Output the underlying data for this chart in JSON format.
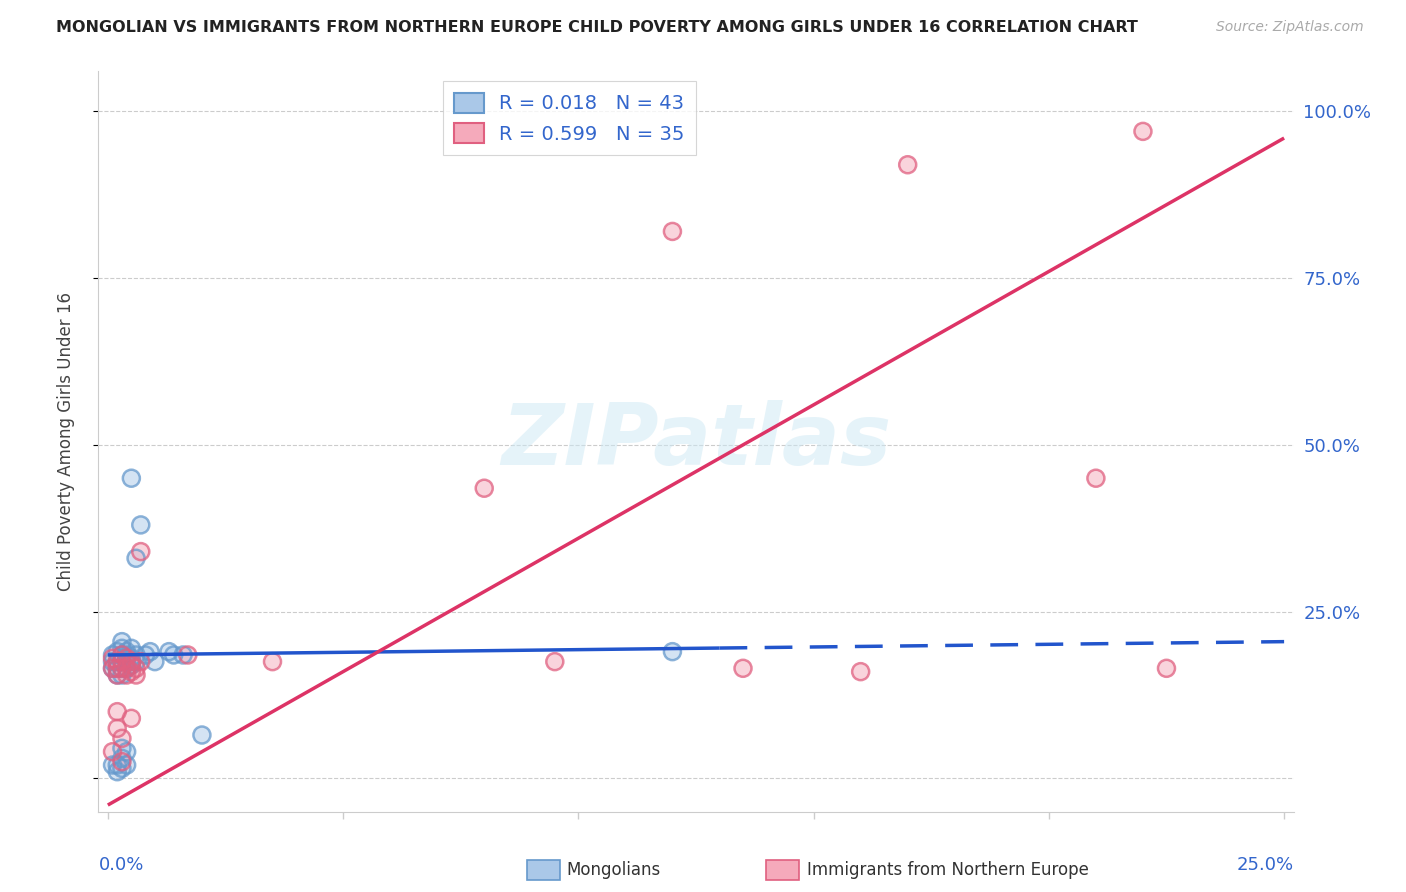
{
  "title": "MONGOLIAN VS IMMIGRANTS FROM NORTHERN EUROPE CHILD POVERTY AMONG GIRLS UNDER 16 CORRELATION CHART",
  "source": "Source: ZipAtlas.com",
  "ylabel": "Child Poverty Among Girls Under 16",
  "watermark": "ZIPatlas",
  "legend_mongolians": "Mongolians",
  "legend_immigrants": "Immigrants from Northern Europe",
  "R_mongolians": 0.018,
  "N_mongolians": 43,
  "R_immigrants": 0.599,
  "N_immigrants": 35,
  "xlim": [
    -0.002,
    0.252
  ],
  "ylim": [
    -0.05,
    1.06
  ],
  "color_mon_face": "#aac8e8",
  "color_mon_edge": "#6699cc",
  "color_imm_face": "#f5aabb",
  "color_imm_edge": "#e06080",
  "color_line_mon": "#2255cc",
  "color_line_imm": "#dd3366",
  "color_grid": "#cccccc",
  "color_axis_label": "#3366cc",
  "color_title": "#222222",
  "color_source": "#aaaaaa",
  "mon_x": [
    0.001,
    0.001,
    0.001,
    0.001,
    0.002,
    0.002,
    0.002,
    0.002,
    0.002,
    0.002,
    0.003,
    0.003,
    0.003,
    0.003,
    0.003,
    0.003,
    0.003,
    0.003,
    0.003,
    0.004,
    0.004,
    0.004,
    0.004,
    0.004,
    0.004,
    0.004,
    0.005,
    0.005,
    0.005,
    0.005,
    0.005,
    0.006,
    0.006,
    0.006,
    0.007,
    0.008,
    0.009,
    0.01,
    0.013,
    0.014,
    0.016,
    0.02,
    0.12
  ],
  "mon_y": [
    0.175,
    0.165,
    0.185,
    0.02,
    0.155,
    0.19,
    0.175,
    0.165,
    0.02,
    0.01,
    0.205,
    0.195,
    0.175,
    0.165,
    0.185,
    0.155,
    0.045,
    0.03,
    0.015,
    0.19,
    0.18,
    0.165,
    0.175,
    0.185,
    0.04,
    0.02,
    0.195,
    0.18,
    0.17,
    0.45,
    0.175,
    0.33,
    0.185,
    0.175,
    0.38,
    0.185,
    0.19,
    0.175,
    0.19,
    0.185,
    0.185,
    0.065,
    0.19
  ],
  "imm_x": [
    0.001,
    0.001,
    0.001,
    0.002,
    0.002,
    0.002,
    0.002,
    0.002,
    0.003,
    0.003,
    0.003,
    0.003,
    0.003,
    0.004,
    0.004,
    0.004,
    0.005,
    0.005,
    0.005,
    0.005,
    0.006,
    0.006,
    0.007,
    0.007,
    0.017,
    0.035,
    0.08,
    0.095,
    0.12,
    0.135,
    0.16,
    0.17,
    0.21,
    0.22,
    0.225
  ],
  "imm_y": [
    0.18,
    0.165,
    0.04,
    0.175,
    0.165,
    0.155,
    0.1,
    0.075,
    0.185,
    0.175,
    0.165,
    0.06,
    0.025,
    0.18,
    0.165,
    0.155,
    0.175,
    0.17,
    0.16,
    0.09,
    0.165,
    0.155,
    0.175,
    0.34,
    0.185,
    0.175,
    0.435,
    0.175,
    0.82,
    0.165,
    0.16,
    0.92,
    0.45,
    0.97,
    0.165
  ],
  "line_mon_x0": 0.0,
  "line_mon_x1": 0.25,
  "line_mon_y0": 0.185,
  "line_mon_y1": 0.205,
  "line_mon_solid_end": 0.13,
  "line_imm_x0": 0.0,
  "line_imm_x1": 0.25,
  "line_imm_y0": -0.04,
  "line_imm_y1": 0.96,
  "ytick_positions": [
    0.0,
    0.25,
    0.5,
    0.75,
    1.0
  ],
  "xtick_positions": [
    0.0,
    0.05,
    0.1,
    0.15,
    0.2,
    0.25
  ]
}
